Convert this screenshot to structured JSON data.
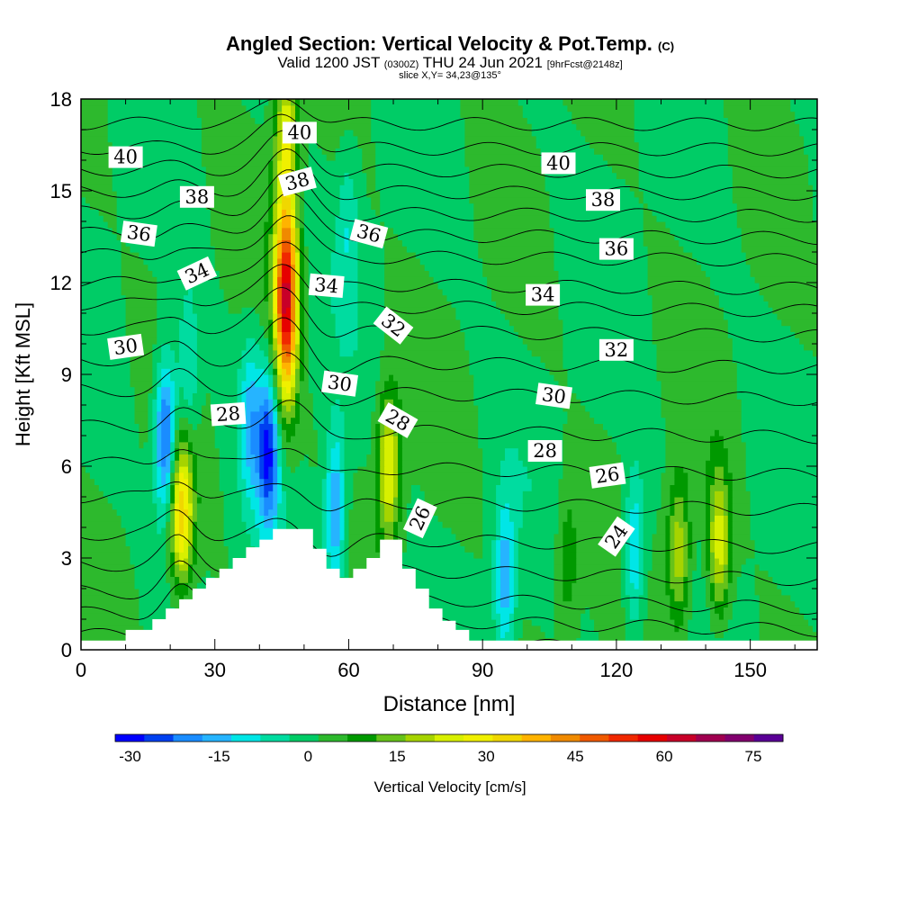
{
  "header": {
    "title": "Angled Section: Vertical Velocity & Pot.Temp.",
    "title_suffix": "(C)",
    "subtitle_main": "Valid 1200 JST",
    "subtitle_utc": "(0300Z)",
    "subtitle_date": "THU 24 Jun 2021",
    "subtitle_fcst": "[9hrFcst@2148z]",
    "slice": "slice X,Y= 34,23@135°"
  },
  "chart_data": {
    "type": "heatmap",
    "title": "Angled Section: Vertical Velocity & Pot.Temp.",
    "xlabel": "Distance [nm]",
    "ylabel": "Height [Kft MSL]",
    "xlim": [
      0,
      165
    ],
    "ylim": [
      0,
      18
    ],
    "x_ticks": [
      0,
      30,
      60,
      90,
      120,
      150
    ],
    "y_ticks": [
      0,
      3,
      6,
      9,
      12,
      15,
      18
    ],
    "colorbar": {
      "label": "Vertical Velocity [cm/s]",
      "tick_labels": [
        "-30",
        "-15",
        "0",
        "15",
        "30",
        "45",
        "60",
        "75"
      ],
      "tick_values": [
        -30,
        -15,
        0,
        15,
        30,
        45,
        60,
        75
      ],
      "min": -32.5,
      "max": 80,
      "step": 5,
      "colors": [
        "#0000ff",
        "#0040f0",
        "#1a8cff",
        "#26b4ff",
        "#00e6e6",
        "#00dca0",
        "#00cc66",
        "#2db92d",
        "#009900",
        "#66c21a",
        "#a6d400",
        "#d8f000",
        "#f0f000",
        "#f0d700",
        "#ffb300",
        "#f08a00",
        "#f05a00",
        "#f02800",
        "#e60000",
        "#c80028",
        "#a00050",
        "#82006e",
        "#5a0096"
      ]
    },
    "background_velocity": 2,
    "updraft_cores": [
      {
        "x": 46,
        "y": 11.5,
        "value": 62
      },
      {
        "x": 22.5,
        "y": 4.5,
        "value": 34
      },
      {
        "x": 69,
        "y": 6,
        "value": 27
      },
      {
        "x": 143,
        "y": 3.4,
        "value": 24
      },
      {
        "x": 134,
        "y": 3.2,
        "value": 20
      },
      {
        "x": 46,
        "y": 17,
        "value": 22
      },
      {
        "x": 109,
        "y": 3,
        "value": 10
      }
    ],
    "downdraft_cores": [
      {
        "x": 19,
        "y": 7,
        "value": -30
      },
      {
        "x": 42,
        "y": 6.5,
        "value": -28
      },
      {
        "x": 57,
        "y": 4.5,
        "value": -22
      },
      {
        "x": 38,
        "y": 7.5,
        "value": -15
      },
      {
        "x": 95,
        "y": 2.3,
        "value": -18
      },
      {
        "x": 124,
        "y": 3.2,
        "value": -17
      },
      {
        "x": 24,
        "y": 9,
        "value": -12
      },
      {
        "x": 60,
        "y": 14,
        "value": -8
      }
    ],
    "terrain": {
      "x": [
        0,
        10,
        10,
        16,
        19,
        22,
        25,
        28,
        31,
        34,
        37,
        40,
        43,
        43,
        52,
        55,
        58,
        61,
        64,
        67,
        67,
        72,
        75,
        78,
        81,
        84,
        87,
        90,
        165
      ],
      "height": [
        0.3,
        0.3,
        0.65,
        1.0,
        1.35,
        1.65,
        2.0,
        2.35,
        2.65,
        3.0,
        3.35,
        3.6,
        3.95,
        3.95,
        3.3,
        2.65,
        2.35,
        2.65,
        3.0,
        3.6,
        3.6,
        2.65,
        2.0,
        1.35,
        0.95,
        0.65,
        0.3,
        0.3,
        0.3
      ]
    },
    "isentropes": [
      {
        "value": 22,
        "y0": 0.5
      },
      {
        "value": 23,
        "y0": 1.2
      },
      {
        "value": 24,
        "y0": 1.9
      },
      {
        "value": 25,
        "y0": 2.8
      },
      {
        "value": 26,
        "y0": 3.8
      },
      {
        "value": 27,
        "y0": 5.0
      },
      {
        "value": 28,
        "y0": 6.1
      },
      {
        "value": 29,
        "y0": 7.3
      },
      {
        "value": 30,
        "y0": 8.5
      },
      {
        "value": 31,
        "y0": 9.5
      },
      {
        "value": 32,
        "y0": 10.5
      },
      {
        "value": 33,
        "y0": 11.3
      },
      {
        "value": 34,
        "y0": 12.0
      },
      {
        "value": 35,
        "y0": 12.9
      },
      {
        "value": 36,
        "y0": 13.6
      },
      {
        "value": 37,
        "y0": 14.3
      },
      {
        "value": 38,
        "y0": 15.0
      },
      {
        "value": 39,
        "y0": 15.7
      },
      {
        "value": 40,
        "y0": 16.4
      },
      {
        "value": 41,
        "y0": 17.2
      }
    ],
    "contour_labels": [
      {
        "text": "40",
        "x": 10,
        "y": 16.1,
        "angle": 0
      },
      {
        "text": "40",
        "x": 49,
        "y": 16.9,
        "angle": 0
      },
      {
        "text": "40",
        "x": 107,
        "y": 15.9,
        "angle": 0
      },
      {
        "text": "38",
        "x": 26,
        "y": 14.8,
        "angle": 0
      },
      {
        "text": "38",
        "x": 48.5,
        "y": 15.3,
        "angle": -15
      },
      {
        "text": "38",
        "x": 117,
        "y": 14.7,
        "angle": 0
      },
      {
        "text": "36",
        "x": 13,
        "y": 13.6,
        "angle": 8
      },
      {
        "text": "36",
        "x": 64.5,
        "y": 13.6,
        "angle": 15
      },
      {
        "text": "36",
        "x": 120,
        "y": 13.1,
        "angle": 0
      },
      {
        "text": "34",
        "x": 26,
        "y": 12.3,
        "angle": -25
      },
      {
        "text": "34",
        "x": 55,
        "y": 11.9,
        "angle": 5
      },
      {
        "text": "34",
        "x": 103.5,
        "y": 11.6,
        "angle": 0
      },
      {
        "text": "32",
        "x": 70,
        "y": 10.6,
        "angle": 38
      },
      {
        "text": "32",
        "x": 120,
        "y": 9.8,
        "angle": 0
      },
      {
        "text": "30",
        "x": 10,
        "y": 9.9,
        "angle": -8
      },
      {
        "text": "30",
        "x": 58,
        "y": 8.7,
        "angle": 8
      },
      {
        "text": "30",
        "x": 106,
        "y": 8.3,
        "angle": 8
      },
      {
        "text": "28",
        "x": 33,
        "y": 7.7,
        "angle": -4
      },
      {
        "text": "28",
        "x": 71,
        "y": 7.5,
        "angle": 30
      },
      {
        "text": "28",
        "x": 104,
        "y": 6.5,
        "angle": 0
      },
      {
        "text": "26",
        "x": 76,
        "y": 4.3,
        "angle": -65
      },
      {
        "text": "26",
        "x": 118,
        "y": 5.7,
        "angle": -8
      },
      {
        "text": "24",
        "x": 120,
        "y": 3.7,
        "angle": -55
      }
    ]
  }
}
